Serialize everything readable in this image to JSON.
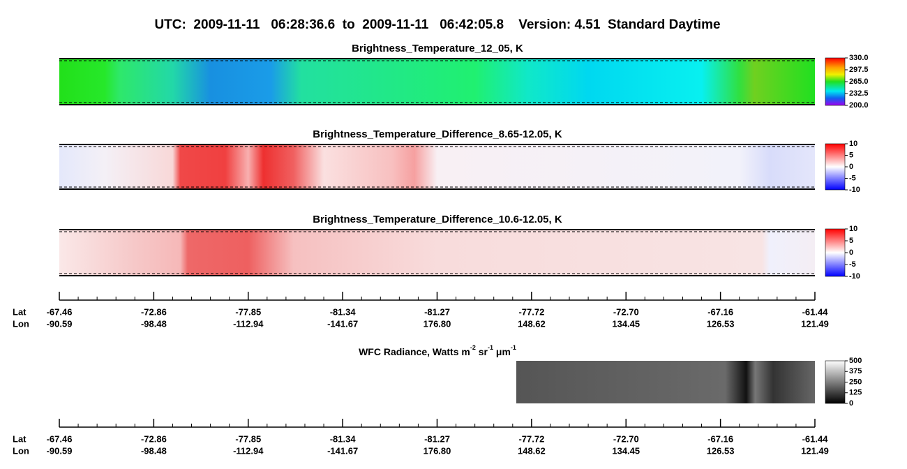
{
  "title": "UTC:  2009-11-11   06:28:36.6  to  2009-11-11   06:42:05.8    Version: 4.51  Standard Daytime",
  "panels": [
    {
      "title": "Brightness_Temperature_12_05, K",
      "colorbar": [
        "330.0",
        "297.5",
        "265.0",
        "232.5",
        "200.0"
      ]
    },
    {
      "title": "Brightness_Temperature_Difference_8.65-12.05, K",
      "colorbar": [
        "10",
        "5",
        "0",
        "-5",
        "-10"
      ]
    },
    {
      "title": "Brightness_Temperature_Difference_10.6-12.05, K",
      "colorbar": [
        "10",
        "5",
        "0",
        "-5",
        "-10"
      ]
    }
  ],
  "axes": [
    {
      "row_labels": [
        "Lat",
        "Lon"
      ],
      "lat": [
        "-67.46",
        "-72.86",
        "-77.85",
        "-81.34",
        "-81.27",
        "-77.72",
        "-72.70",
        "-67.16",
        "-61.44"
      ],
      "lon": [
        "-90.59",
        "-98.48",
        "-112.94",
        "-141.67",
        "176.80",
        "148.62",
        "134.45",
        "126.53",
        "121.49"
      ]
    },
    {
      "row_labels": [
        "Lat",
        "Lon"
      ],
      "lat": [
        "-67.46",
        "-72.86",
        "-77.85",
        "-81.34",
        "-81.27",
        "-77.72",
        "-72.70",
        "-67.16",
        "-61.44"
      ],
      "lon": [
        "-90.59",
        "-98.48",
        "-112.94",
        "-141.67",
        "176.80",
        "148.62",
        "134.45",
        "126.53",
        "121.49"
      ]
    }
  ],
  "wfc": {
    "title": [
      "WFC Radiance, Watts m",
      "-2",
      " sr",
      "-1",
      " μm",
      "-1"
    ],
    "colorbar": [
      "500",
      "375",
      "250",
      "125",
      "0"
    ]
  }
}
